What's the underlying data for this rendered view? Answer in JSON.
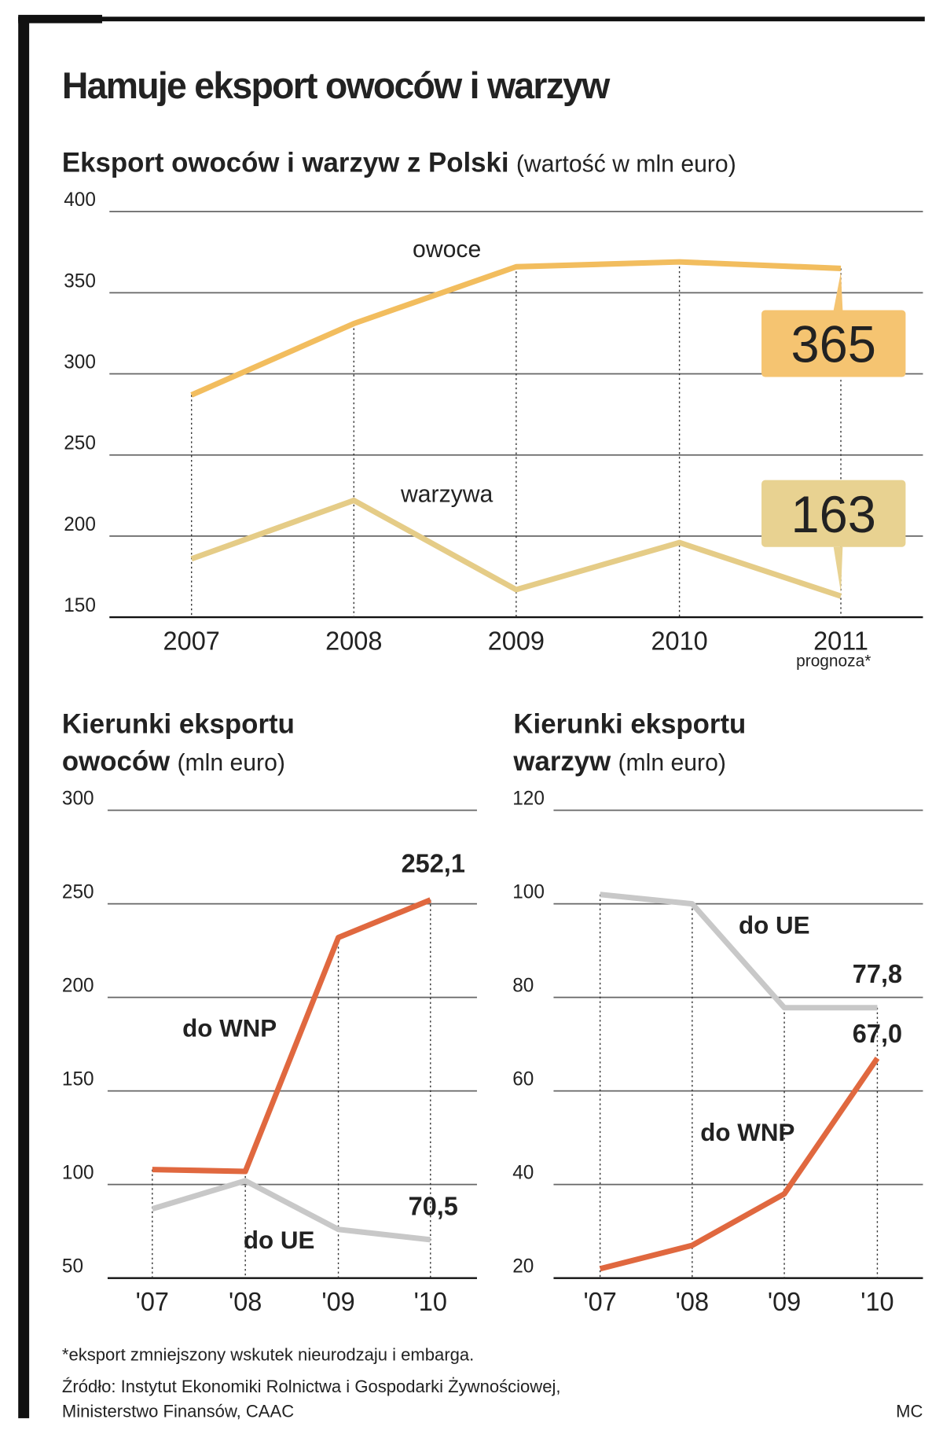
{
  "title": "Hamuje eksport owoców i warzyw",
  "footnote": "*eksport zmniejszony wskutek nieurodzaju i embarga.",
  "source": [
    "Źródło: Instytut Ekonomiki Rolnictwa i Gospodarki Żywnościowej,",
    "Ministerstwo Finansów, CAAC"
  ],
  "credit": "MC",
  "chart_data": [
    {
      "type": "line",
      "title": [
        "Eksport owoców i warzyw z Polski"
      ],
      "subtitle": "(wartość w mln euro)",
      "categories": [
        "2007",
        "2008",
        "2009",
        "2010",
        "2011"
      ],
      "annotation": "prognoza*",
      "series": [
        {
          "name": "owoce",
          "color": "#f2bd5e",
          "label_color": "#f5c471",
          "values": [
            287,
            331,
            366,
            369,
            365
          ]
        },
        {
          "name": "warzywa",
          "color": "#e5cc87",
          "label_color": "#e8d291",
          "values": [
            186,
            222,
            167,
            196,
            163
          ]
        }
      ],
      "label_last": true,
      "ylim": [
        150,
        400
      ],
      "yticks": [
        150,
        200,
        250,
        300,
        350,
        400
      ],
      "grid": true
    },
    {
      "type": "line",
      "title": [
        "Kierunki eksportu",
        "owoców"
      ],
      "subtitle": "(mln euro)",
      "categories": [
        "'07",
        "'08",
        "'09",
        "'10"
      ],
      "series": [
        {
          "name": "do WNP",
          "color": "#e0683f",
          "values": [
            108,
            107,
            232,
            252.1
          ],
          "value_labels": [
            null,
            null,
            null,
            "252,1"
          ]
        },
        {
          "name": "do UE",
          "color": "#c8c8c8",
          "values": [
            87,
            102,
            76,
            70.5
          ],
          "value_labels": [
            null,
            null,
            null,
            "70,5"
          ]
        }
      ],
      "ylim": [
        50,
        300
      ],
      "yticks": [
        50,
        100,
        150,
        200,
        250,
        300
      ],
      "grid": true
    },
    {
      "type": "line",
      "title": [
        "Kierunki eksportu",
        "warzyw"
      ],
      "subtitle": "(mln euro)",
      "categories": [
        "'07",
        "'08",
        "'09",
        "'10"
      ],
      "series": [
        {
          "name": "do UE",
          "color": "#c8c8c8",
          "values": [
            102,
            100,
            77.8,
            77.8
          ],
          "value_labels": [
            null,
            null,
            null,
            "77,8"
          ]
        },
        {
          "name": "do WNP",
          "color": "#e0683f",
          "values": [
            22,
            27,
            38,
            67.0
          ],
          "value_labels": [
            null,
            null,
            null,
            "67,0"
          ]
        }
      ],
      "ylim": [
        20,
        120
      ],
      "yticks": [
        20,
        40,
        60,
        80,
        100,
        120
      ],
      "grid": true
    }
  ]
}
